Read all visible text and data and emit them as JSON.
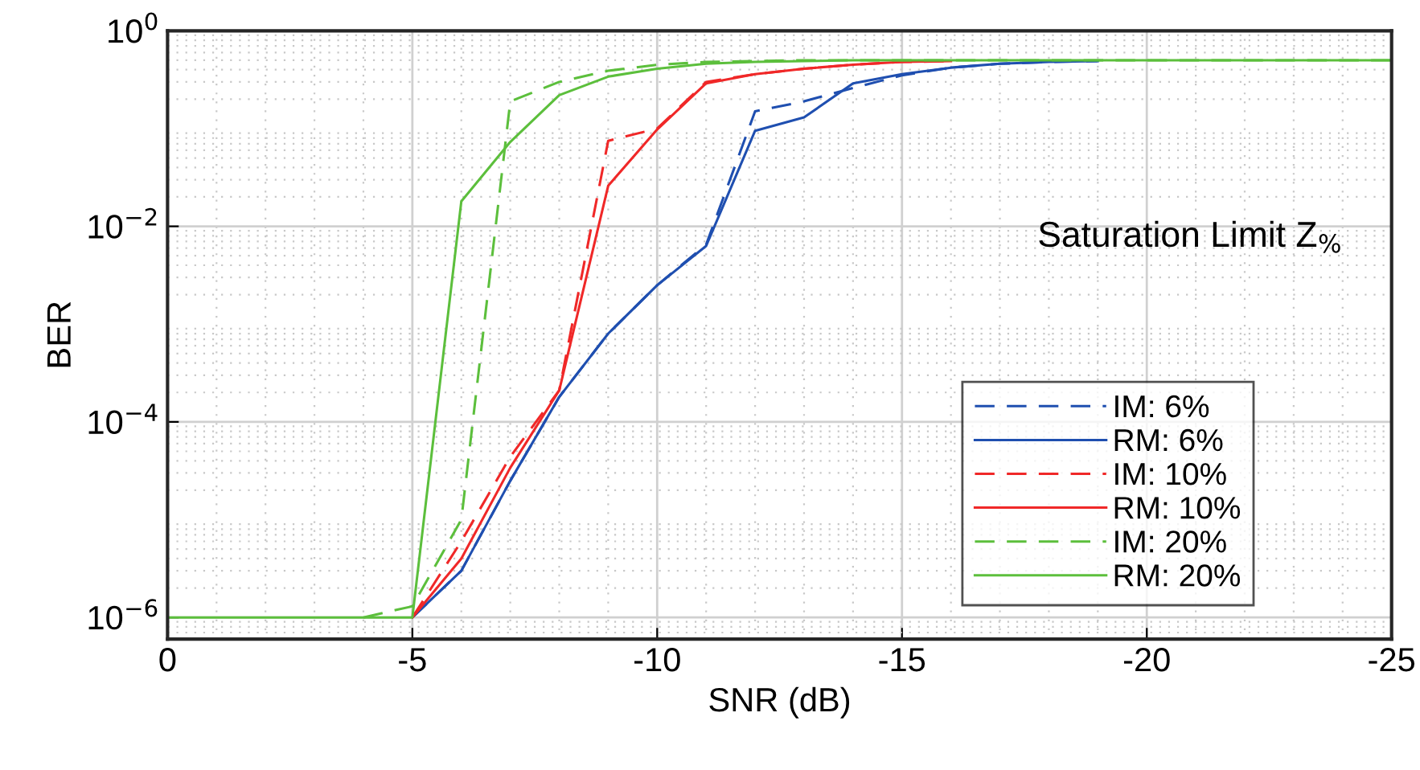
{
  "chart_data": {
    "type": "line",
    "xlabel": "SNR (dB)",
    "ylabel": "BER",
    "log": "y",
    "grid": true,
    "legend": "lower right",
    "xlim": [
      0,
      -25
    ],
    "xticks": [
      0,
      -5,
      -10,
      -15,
      -20,
      -25
    ],
    "ylim": [
      6e-07,
      1
    ],
    "yticks": [
      {
        "value": 1e-06,
        "label": "10$^{−6}$"
      },
      {
        "value": 0.0001,
        "label": "10$^{−4}$"
      },
      {
        "value": 0.01,
        "label": "10$^{−2}$"
      },
      {
        "value": 1,
        "label": "10$^{0}$"
      }
    ],
    "annotations": [
      "Saturation Limit Z$_{%}$"
    ],
    "x": [
      0,
      -1,
      -2,
      -3,
      -4,
      -5,
      -6,
      -7,
      -8,
      -9,
      -10,
      -11,
      -12,
      -13,
      -14,
      -15,
      -16,
      -17,
      -18,
      -19,
      -20,
      -21,
      -22,
      -23,
      -24,
      -25
    ],
    "series": [
      {
        "name": "IM: 6%",
        "color": "#1f4fb0",
        "line_style": "dashed",
        "values": [
          null,
          null,
          null,
          null,
          null,
          1e-06,
          3e-06,
          2.5e-05,
          0.00018,
          0.0008,
          0.0025,
          0.0065,
          0.15,
          0.19,
          0.26,
          0.35,
          0.42,
          0.46,
          0.48,
          0.49,
          null,
          null,
          null,
          null,
          null,
          null
        ]
      },
      {
        "name": "RM: 6%",
        "color": "#1f4fb0",
        "line_style": "solid",
        "values": [
          null,
          null,
          null,
          null,
          null,
          1e-06,
          3e-06,
          2.5e-05,
          0.00018,
          0.0008,
          0.0025,
          0.0063,
          0.095,
          0.13,
          0.29,
          0.36,
          0.42,
          0.46,
          0.48,
          0.49,
          null,
          null,
          null,
          null,
          null,
          null
        ]
      },
      {
        "name": "IM: 10%",
        "color": "#f02828",
        "line_style": "dashed",
        "values": [
          null,
          null,
          null,
          null,
          null,
          1e-06,
          6e-06,
          4.4e-05,
          0.00021,
          0.075,
          0.1,
          0.3,
          0.36,
          0.41,
          0.45,
          0.48,
          0.49,
          null,
          null,
          null,
          null,
          null,
          null,
          null,
          null,
          null
        ]
      },
      {
        "name": "RM: 10%",
        "color": "#f02828",
        "line_style": "solid",
        "values": [
          null,
          null,
          null,
          null,
          null,
          1e-06,
          4e-06,
          3.4e-05,
          0.00021,
          0.026,
          0.098,
          0.29,
          0.36,
          0.41,
          0.45,
          0.48,
          0.49,
          null,
          null,
          null,
          null,
          null,
          null,
          null,
          null,
          null
        ]
      },
      {
        "name": "IM: 20%",
        "color": "#5cbf3c",
        "line_style": "dashed",
        "values": [
          null,
          null,
          null,
          null,
          1e-06,
          1.3e-06,
          1e-05,
          0.19,
          0.3,
          0.39,
          0.45,
          0.48,
          0.49,
          0.5,
          0.5,
          0.5,
          0.5,
          0.5,
          0.5,
          0.5,
          0.5,
          0.5,
          0.5,
          0.5,
          0.5,
          0.5
        ]
      },
      {
        "name": "RM: 20%",
        "color": "#5cbf3c",
        "line_style": "solid",
        "values": [
          1e-06,
          1e-06,
          1e-06,
          1e-06,
          1e-06,
          1e-06,
          0.018,
          0.073,
          0.22,
          0.34,
          0.41,
          0.46,
          0.48,
          0.49,
          0.5,
          0.5,
          0.5,
          0.5,
          0.5,
          0.5,
          0.5,
          0.5,
          0.5,
          0.5,
          0.5,
          0.5
        ]
      }
    ]
  }
}
